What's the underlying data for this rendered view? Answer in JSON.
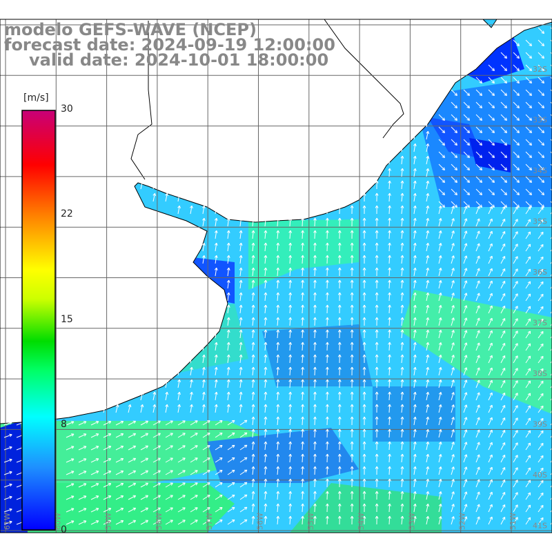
{
  "title": {
    "line1": "modelo GEFS-WAVE (NCEP)",
    "line2": "forecast date: 2024-09-19 12:00:00",
    "line3": "valid date: 2024-10-01 18:00:00"
  },
  "colorbar": {
    "units": "[m/s]",
    "ticks": [
      "30",
      "22",
      "15",
      "8",
      "0"
    ],
    "colors": [
      "#0000ff",
      "#1e90ff",
      "#00ffff",
      "#00ff00",
      "#ffff00",
      "#ff8000",
      "#ff0000",
      "#c80078"
    ]
  },
  "map": {
    "lat_labels": [
      "32S",
      "33S",
      "34S",
      "35S",
      "36S",
      "37S",
      "38S",
      "39S",
      "40S",
      "41S"
    ],
    "lon_labels": [
      "61W",
      "60W",
      "59W",
      "58W",
      "57W",
      "56W",
      "55W",
      "54W",
      "53W",
      "52W",
      "51W"
    ],
    "land_color": "#ffffff",
    "grid_color": "#666666"
  }
}
